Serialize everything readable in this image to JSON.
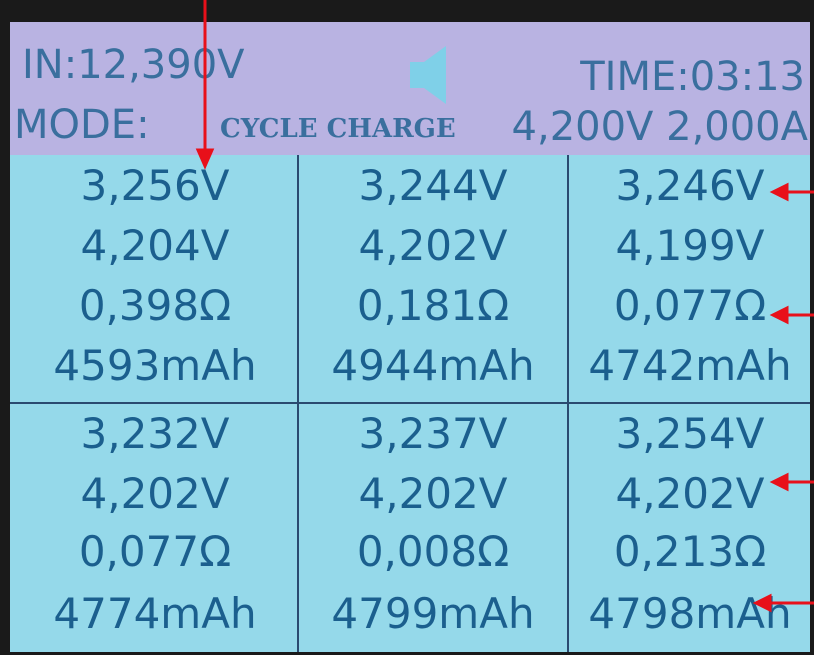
{
  "header": {
    "input": "IN:12,390V",
    "time": "TIME:03:13",
    "mode_label": "MODE:",
    "mode": "CYCLE CHARGE",
    "setpoint": "4,200V 2,000A"
  },
  "cells": [
    [
      "3,256V",
      "4,204V",
      "0,398Ω",
      "4593mAh"
    ],
    [
      "3,244V",
      "4,202V",
      "0,181Ω",
      "4944mAh"
    ],
    [
      "3,246V",
      "4,199V",
      "0,077Ω",
      "4742mAh"
    ],
    [
      "3,232V",
      "4,202V",
      "0,077Ω",
      "4774mAh"
    ],
    [
      "3,237V",
      "4,202V",
      "0,008Ω",
      "4799mAh"
    ],
    [
      "3,254V",
      "4,202V",
      "0,213Ω",
      "4798mAh"
    ]
  ]
}
